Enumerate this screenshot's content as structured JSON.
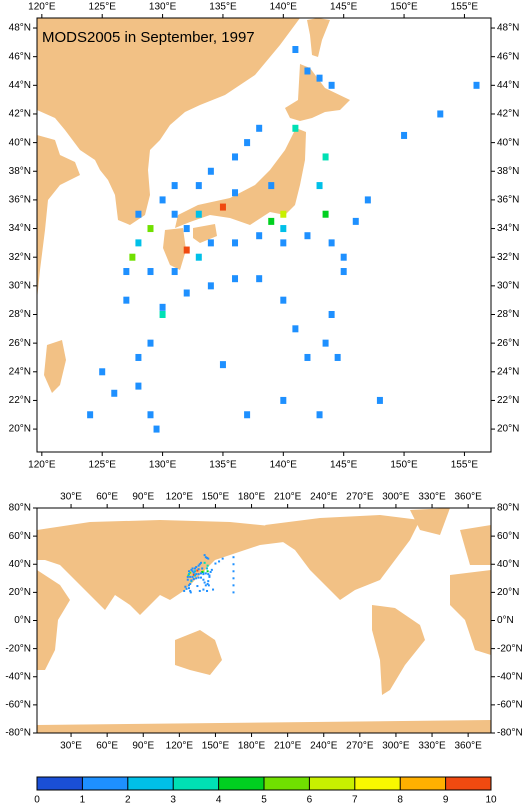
{
  "chart_data": {
    "type": "grid-map",
    "title": "MODS2005 in September, 1997",
    "regional": {
      "xlim": [
        119.6,
        157.2
      ],
      "ylim": [
        18.4,
        48.7
      ],
      "xticks": [
        {
          "value": 120,
          "label": "120°E"
        },
        {
          "value": 125,
          "label": "125°E"
        },
        {
          "value": 130,
          "label": "130°E"
        },
        {
          "value": 135,
          "label": "135°E"
        },
        {
          "value": 140,
          "label": "140°E"
        },
        {
          "value": 145,
          "label": "145°E"
        },
        {
          "value": 150,
          "label": "150°E"
        },
        {
          "value": 155,
          "label": "155°E"
        }
      ],
      "yticks": [
        {
          "value": 20,
          "label": "20°N"
        },
        {
          "value": 22,
          "label": "22°N"
        },
        {
          "value": 24,
          "label": "24°N"
        },
        {
          "value": 26,
          "label": "26°N"
        },
        {
          "value": 28,
          "label": "28°N"
        },
        {
          "value": 30,
          "label": "30°N"
        },
        {
          "value": 32,
          "label": "32°N"
        },
        {
          "value": 34,
          "label": "34°N"
        },
        {
          "value": 36,
          "label": "36°N"
        },
        {
          "value": 38,
          "label": "38°N"
        },
        {
          "value": 40,
          "label": "40°N"
        },
        {
          "value": 42,
          "label": "42°N"
        },
        {
          "value": 44,
          "label": "44°N"
        },
        {
          "value": 46,
          "label": "46°N"
        },
        {
          "value": 48,
          "label": "48°N"
        }
      ]
    },
    "global": {
      "xlim": [
        1.7,
        379
      ],
      "ylim": [
        -80,
        80
      ],
      "xticks": [
        {
          "value": 30,
          "label": "30°E"
        },
        {
          "value": 60,
          "label": "60°E"
        },
        {
          "value": 90,
          "label": "90°E"
        },
        {
          "value": 120,
          "label": "120°E"
        },
        {
          "value": 150,
          "label": "150°E"
        },
        {
          "value": 180,
          "label": "180°E"
        },
        {
          "value": 210,
          "label": "210°E"
        },
        {
          "value": 240,
          "label": "240°E"
        },
        {
          "value": 270,
          "label": "270°E"
        },
        {
          "value": 300,
          "label": "300°E"
        },
        {
          "value": 330,
          "label": "330°E"
        },
        {
          "value": 360,
          "label": "360°E"
        }
      ],
      "yticks": [
        {
          "value": -80,
          "label": "-80°N"
        },
        {
          "value": -60,
          "label": "-60°N"
        },
        {
          "value": -40,
          "label": "-40°N"
        },
        {
          "value": -20,
          "label": "-20°N"
        },
        {
          "value": 0,
          "label": "0°N"
        },
        {
          "value": 20,
          "label": "20°N"
        },
        {
          "value": 40,
          "label": "40°N"
        },
        {
          "value": 60,
          "label": "60°N"
        },
        {
          "value": 80,
          "label": "80°N"
        }
      ]
    },
    "colorbar": {
      "ticks": [
        0,
        1,
        2,
        3,
        4,
        5,
        6,
        7,
        8,
        9,
        10
      ],
      "colors": [
        "#1a4fd6",
        "#1e90ff",
        "#00c0e8",
        "#00e0b4",
        "#00d020",
        "#70e000",
        "#c8f000",
        "#f8f800",
        "#ffb000",
        "#f04a10"
      ]
    },
    "cells": [
      {
        "lon": 140,
        "lat": 35,
        "value": 6
      },
      {
        "lon": 135,
        "lat": 35.5,
        "value": 9
      },
      {
        "lon": 132,
        "lat": 32.5,
        "value": 9
      },
      {
        "lon": 129,
        "lat": 34,
        "value": 5
      },
      {
        "lon": 127.5,
        "lat": 32,
        "value": 5
      },
      {
        "lon": 141,
        "lat": 41,
        "value": 3
      },
      {
        "lon": 143.5,
        "lat": 39,
        "value": 3
      },
      {
        "lon": 143.5,
        "lat": 35,
        "value": 4
      },
      {
        "lon": 140,
        "lat": 34,
        "value": 2
      },
      {
        "lon": 130,
        "lat": 28,
        "value": 3
      },
      {
        "lon": 133,
        "lat": 32,
        "value": 2
      },
      {
        "lon": 139,
        "lat": 34.5,
        "value": 4
      },
      {
        "lon": 143,
        "lat": 44.5,
        "value": 1
      },
      {
        "lon": 142,
        "lat": 45,
        "value": 1
      },
      {
        "lon": 141,
        "lat": 46.5,
        "value": 1
      },
      {
        "lon": 144,
        "lat": 44,
        "value": 1
      },
      {
        "lon": 138,
        "lat": 41,
        "value": 1
      },
      {
        "lon": 137,
        "lat": 40,
        "value": 1
      },
      {
        "lon": 136,
        "lat": 39,
        "value": 1
      },
      {
        "lon": 134,
        "lat": 38,
        "value": 1
      },
      {
        "lon": 133,
        "lat": 37,
        "value": 1
      },
      {
        "lon": 131,
        "lat": 37,
        "value": 1
      },
      {
        "lon": 130,
        "lat": 36,
        "value": 1
      },
      {
        "lon": 131,
        "lat": 35,
        "value": 1
      },
      {
        "lon": 132,
        "lat": 34,
        "value": 1
      },
      {
        "lon": 134,
        "lat": 33,
        "value": 1
      },
      {
        "lon": 136,
        "lat": 33,
        "value": 1
      },
      {
        "lon": 138,
        "lat": 33.5,
        "value": 1
      },
      {
        "lon": 140,
        "lat": 33,
        "value": 1
      },
      {
        "lon": 142,
        "lat": 33.5,
        "value": 1
      },
      {
        "lon": 144,
        "lat": 33,
        "value": 1
      },
      {
        "lon": 146,
        "lat": 34.5,
        "value": 1
      },
      {
        "lon": 145,
        "lat": 31,
        "value": 1
      },
      {
        "lon": 144,
        "lat": 28,
        "value": 1
      },
      {
        "lon": 143.5,
        "lat": 26,
        "value": 1
      },
      {
        "lon": 144.5,
        "lat": 25,
        "value": 1
      },
      {
        "lon": 142,
        "lat": 25,
        "value": 1
      },
      {
        "lon": 141,
        "lat": 27,
        "value": 1
      },
      {
        "lon": 140,
        "lat": 29,
        "value": 1
      },
      {
        "lon": 138,
        "lat": 30.5,
        "value": 1
      },
      {
        "lon": 136,
        "lat": 30.5,
        "value": 1
      },
      {
        "lon": 134,
        "lat": 30,
        "value": 1
      },
      {
        "lon": 132,
        "lat": 29.5,
        "value": 1
      },
      {
        "lon": 130,
        "lat": 28.5,
        "value": 1
      },
      {
        "lon": 129,
        "lat": 26,
        "value": 1
      },
      {
        "lon": 128,
        "lat": 25,
        "value": 1
      },
      {
        "lon": 128,
        "lat": 23,
        "value": 1
      },
      {
        "lon": 129,
        "lat": 21,
        "value": 1
      },
      {
        "lon": 129.5,
        "lat": 20,
        "value": 1
      },
      {
        "lon": 126,
        "lat": 22.5,
        "value": 1
      },
      {
        "lon": 124,
        "lat": 21,
        "value": 1
      },
      {
        "lon": 125,
        "lat": 24,
        "value": 1
      },
      {
        "lon": 127,
        "lat": 29,
        "value": 1
      },
      {
        "lon": 127,
        "lat": 31,
        "value": 1
      },
      {
        "lon": 129,
        "lat": 31,
        "value": 1
      },
      {
        "lon": 131,
        "lat": 31,
        "value": 1
      },
      {
        "lon": 135,
        "lat": 24.5,
        "value": 1
      },
      {
        "lon": 137,
        "lat": 21,
        "value": 1
      },
      {
        "lon": 140,
        "lat": 22,
        "value": 1
      },
      {
        "lon": 143,
        "lat": 21,
        "value": 1
      },
      {
        "lon": 148,
        "lat": 22,
        "value": 1
      },
      {
        "lon": 150,
        "lat": 40.5,
        "value": 1
      },
      {
        "lon": 156,
        "lat": 44,
        "value": 1
      },
      {
        "lon": 153,
        "lat": 42,
        "value": 1
      },
      {
        "lon": 147,
        "lat": 36,
        "value": 1
      },
      {
        "lon": 143,
        "lat": 37,
        "value": 2
      },
      {
        "lon": 139,
        "lat": 37,
        "value": 1
      },
      {
        "lon": 136,
        "lat": 36.5,
        "value": 1
      },
      {
        "lon": 133,
        "lat": 35,
        "value": 2
      },
      {
        "lon": 128,
        "lat": 35,
        "value": 1
      },
      {
        "lon": 128,
        "lat": 33,
        "value": 2
      },
      {
        "lon": 145,
        "lat": 32,
        "value": 1
      },
      {
        "lon": 165,
        "lat": 45,
        "value": 1
      },
      {
        "lon": 165,
        "lat": 40,
        "value": 1
      },
      {
        "lon": 165,
        "lat": 35,
        "value": 1
      },
      {
        "lon": 165,
        "lat": 30,
        "value": 1
      },
      {
        "lon": 165,
        "lat": 25,
        "value": 1
      },
      {
        "lon": 165,
        "lat": 20,
        "value": 1
      }
    ]
  }
}
